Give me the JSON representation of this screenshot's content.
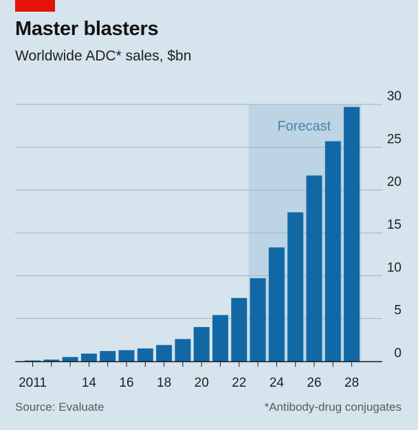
{
  "header": {
    "title": "Master blasters",
    "subtitle": "Worldwide ADC* sales, $bn"
  },
  "footer": {
    "source": "Source: Evaluate",
    "note": "*Antibody-drug conjugates"
  },
  "colors": {
    "background": "#d6e4ed",
    "bar": "#1268a5",
    "forecast_shade": "#bcd4e3",
    "forecast_label": "#4a86ab",
    "brand_red": "#e3120b"
  },
  "chart_data": {
    "type": "bar",
    "title": "Master blasters",
    "subtitle": "Worldwide ADC* sales, $bn",
    "categories": [
      "2011",
      "2012",
      "2013",
      "2014",
      "2015",
      "2016",
      "2017",
      "2018",
      "2019",
      "2020",
      "2021",
      "2022",
      "2023",
      "2024",
      "2025",
      "2026",
      "2027",
      "2028"
    ],
    "values": [
      0.1,
      0.2,
      0.5,
      0.9,
      1.2,
      1.3,
      1.5,
      1.9,
      2.6,
      4.0,
      5.4,
      7.4,
      9.7,
      13.3,
      17.4,
      21.7,
      25.7,
      29.7
    ],
    "ylim": [
      0,
      30
    ],
    "yticks": [
      0,
      5,
      10,
      15,
      20,
      25,
      30
    ],
    "ytick_labels": [
      "0",
      "5",
      "10",
      "15",
      "20",
      "25",
      "30"
    ],
    "xtick_labels": [
      {
        "category": "2011",
        "label": "2011"
      },
      {
        "category": "2014",
        "label": "14"
      },
      {
        "category": "2016",
        "label": "16"
      },
      {
        "category": "2018",
        "label": "18"
      },
      {
        "category": "2020",
        "label": "20"
      },
      {
        "category": "2022",
        "label": "22"
      },
      {
        "category": "2024",
        "label": "24"
      },
      {
        "category": "2026",
        "label": "26"
      },
      {
        "category": "2028",
        "label": "28"
      }
    ],
    "forecast": {
      "label": "Forecast",
      "from": "2023",
      "to": "2028"
    },
    "grid": true,
    "yaxis_side": "right"
  }
}
